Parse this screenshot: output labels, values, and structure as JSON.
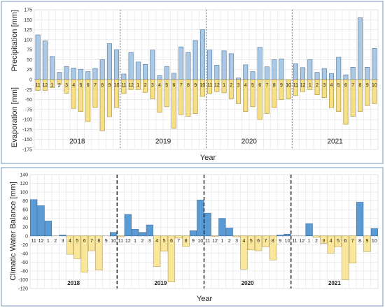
{
  "colors": {
    "precip": "#a9c9e6",
    "precip_stroke": "#4a6f95",
    "evap": "#f7df86",
    "evap_stroke": "#a08a35",
    "cwb_pos": "#5b9bd5",
    "cwb_pos_stroke": "#3a6e9e",
    "cwb_neg": "#fae79c",
    "cwb_neg_stroke": "#b8a255"
  },
  "chart_data": [
    {
      "type": "bar",
      "months": [
        "11",
        "12",
        "1",
        "2",
        "3",
        "4",
        "5",
        "6",
        "7",
        "8",
        "9",
        "10",
        "11",
        "12",
        "1",
        "2",
        "3",
        "4",
        "5",
        "6",
        "7",
        "8",
        "9",
        "10",
        "11",
        "12",
        "1",
        "2",
        "3",
        "4",
        "5",
        "6",
        "7",
        "8",
        "9",
        "10",
        "11",
        "12",
        "1",
        "2",
        "3",
        "4",
        "5",
        "6",
        "7",
        "8",
        "9",
        "10"
      ],
      "year_labels": [
        "2018",
        "2019",
        "2020",
        "2021"
      ],
      "series": [
        {
          "name": "Precipitation",
          "values": [
            112,
            97,
            58,
            18,
            33,
            29,
            26,
            20,
            28,
            50,
            90,
            75,
            14,
            68,
            44,
            38,
            74,
            10,
            33,
            16,
            82,
            68,
            98,
            125,
            74,
            36,
            72,
            65,
            4,
            37,
            20,
            81,
            32,
            50,
            52,
            0,
            40,
            30,
            50,
            18,
            28,
            15,
            56,
            12,
            31,
            155,
            31,
            78
          ]
        },
        {
          "name": "Evaporation",
          "values": [
            -27,
            -27,
            -20,
            -12,
            -34,
            -72,
            -80,
            -105,
            -70,
            -128,
            -93,
            -70,
            -35,
            -25,
            -25,
            -32,
            -48,
            -82,
            -68,
            -122,
            -88,
            -92,
            -85,
            -42,
            -35,
            -30,
            -33,
            -48,
            -60,
            -80,
            -68,
            -100,
            -85,
            -70,
            -50,
            -48,
            -40,
            -30,
            -25,
            -38,
            -45,
            -70,
            -80,
            -112,
            -92,
            -80,
            -65,
            -60
          ]
        }
      ],
      "ylabel_top": "Precipitation [mm]",
      "ylabel_bottom": "Evaporation [mm]",
      "xlabel": "Year",
      "ylim": [
        -175,
        175
      ],
      "yticks": [
        -175,
        -150,
        -125,
        -100,
        -75,
        -50,
        -25,
        0,
        25,
        50,
        75,
        100,
        125,
        150,
        175
      ]
    },
    {
      "type": "bar",
      "months": [
        "11",
        "12",
        "1",
        "2",
        "3",
        "4",
        "5",
        "6",
        "7",
        "8",
        "9",
        "10",
        "11",
        "12",
        "1",
        "2",
        "3",
        "4",
        "5",
        "6",
        "7",
        "8",
        "9",
        "10",
        "11",
        "12",
        "1",
        "2",
        "3",
        "4",
        "5",
        "6",
        "7",
        "8",
        "9",
        "10",
        "11",
        "12",
        "1",
        "2",
        "3",
        "4",
        "5",
        "6",
        "7",
        "8",
        "9",
        "10"
      ],
      "year_labels": [
        "2018",
        "2019",
        "2020",
        "2021"
      ],
      "series": [
        {
          "name": "Climatic Water Balance",
          "values": [
            83,
            69,
            34,
            0,
            2,
            -42,
            -52,
            -83,
            -34,
            -78,
            0,
            8,
            -2,
            49,
            15,
            8,
            25,
            -70,
            -35,
            -105,
            -5,
            -24,
            12,
            82,
            52,
            -1,
            40,
            18,
            -2,
            -76,
            -32,
            -34,
            -25,
            -55,
            2,
            4,
            0,
            0,
            28,
            -3,
            -17,
            -40,
            -25,
            -100,
            -62,
            77,
            -36,
            17
          ]
        }
      ],
      "ylabel": "Climatic Water Balance [mm]",
      "xlabel": "Year",
      "ylim": [
        -120,
        140
      ],
      "yticks": [
        -120,
        -100,
        -80,
        -60,
        -40,
        -20,
        0,
        20,
        40,
        60,
        80,
        100,
        120,
        140
      ]
    }
  ]
}
